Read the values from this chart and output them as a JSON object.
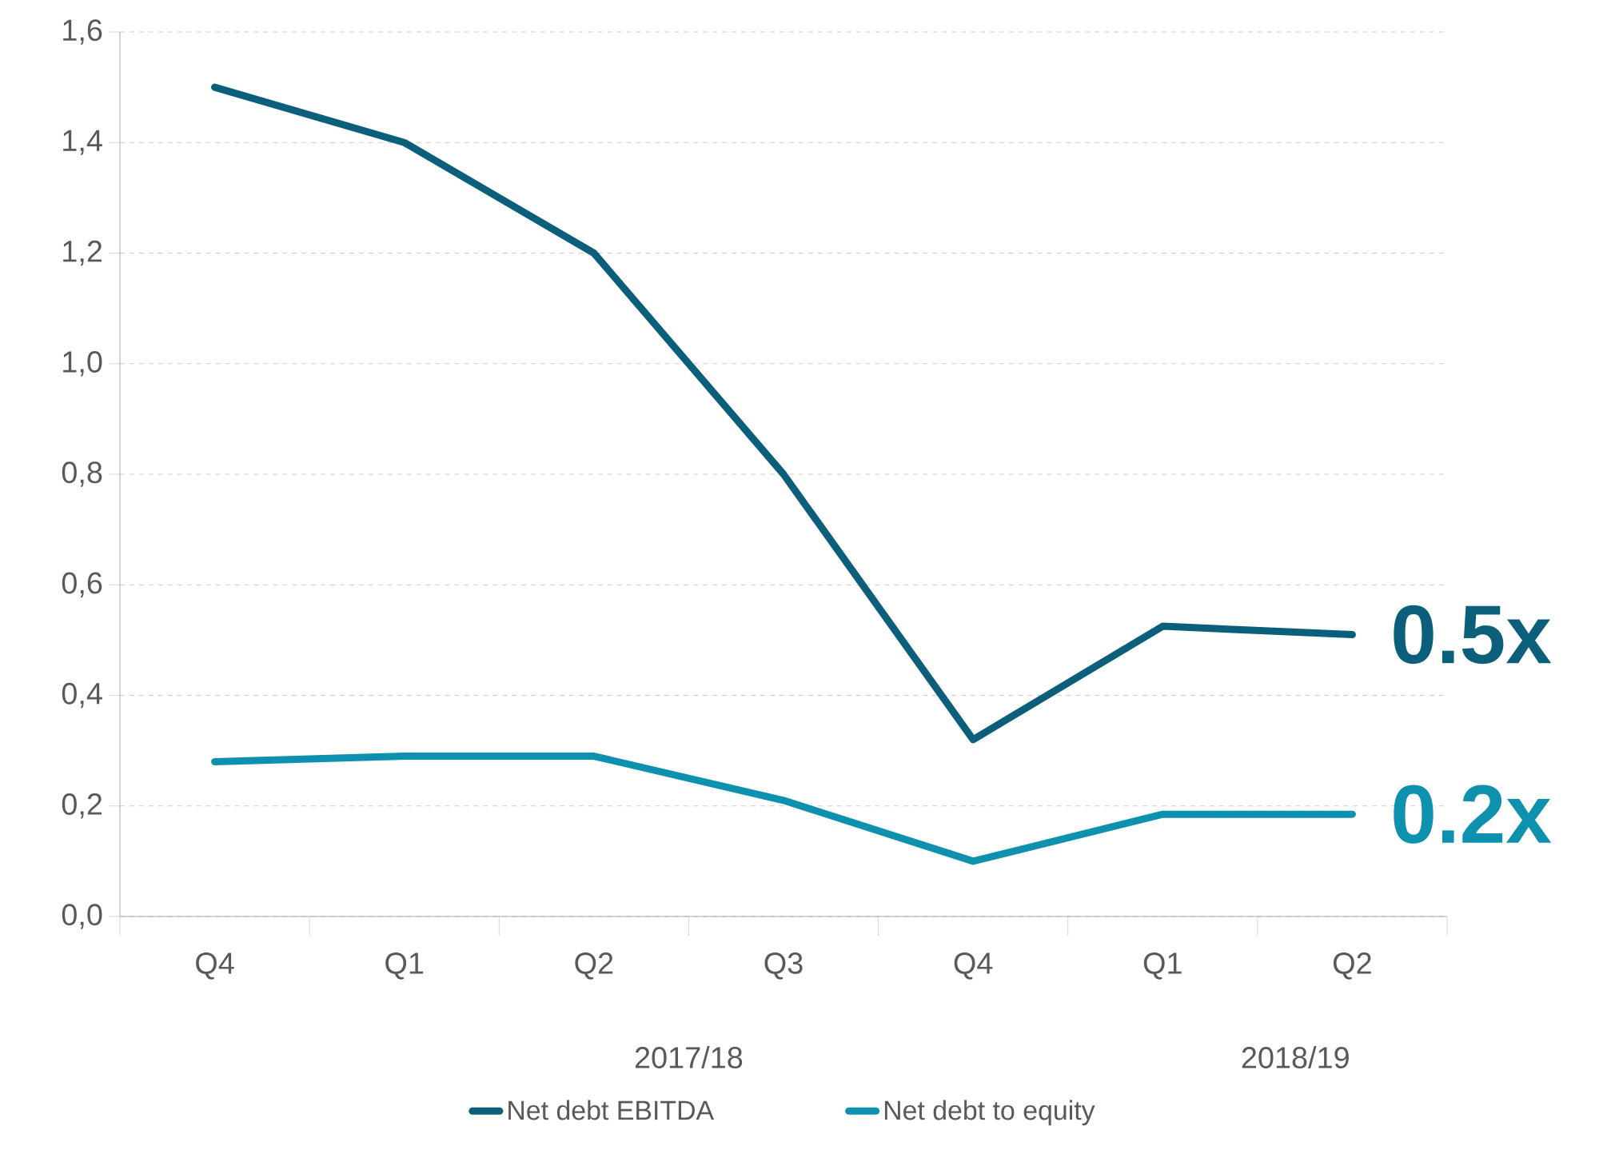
{
  "chart_data": {
    "type": "line",
    "categories": [
      "Q4",
      "Q1",
      "Q2",
      "Q3",
      "Q4",
      "Q1",
      "Q2"
    ],
    "series": [
      {
        "name": "Net debt EBITDA",
        "color": "#0b5f7b",
        "values": [
          1.5,
          1.4,
          1.2,
          0.8,
          0.32,
          0.525,
          0.51
        ]
      },
      {
        "name": "Net debt to equity",
        "color": "#0d91ae",
        "values": [
          0.28,
          0.29,
          0.29,
          0.21,
          0.1,
          0.185,
          0.185
        ]
      }
    ],
    "ylim": [
      0,
      1.6
    ],
    "yticks": [
      {
        "value": 0,
        "label": "0,0"
      },
      {
        "value": 0.2,
        "label": "0,2"
      },
      {
        "value": 0.4,
        "label": "0,4"
      },
      {
        "value": 0.6,
        "label": "0,6"
      },
      {
        "value": 0.8,
        "label": "0,8"
      },
      {
        "value": 1.0,
        "label": "1,0"
      },
      {
        "value": 1.2,
        "label": "1,2"
      },
      {
        "value": 1.4,
        "label": "1,4"
      },
      {
        "value": 1.6,
        "label": "1,6"
      }
    ],
    "grid": "y",
    "legend": "bottom",
    "line_style": "solid",
    "annotations": [
      "0.5x",
      "0.2x",
      "2017/18",
      "2018/19"
    ]
  }
}
